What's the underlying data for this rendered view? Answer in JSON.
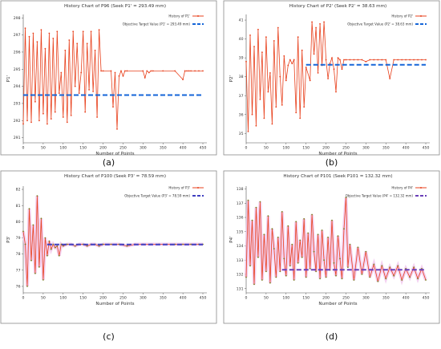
{
  "chart_data": [
    {
      "type": "line",
      "panel_label": "(a)",
      "title": "History Chart of P96 (Seek P1' = 293.49 mm)",
      "xlabel": "Number of Points",
      "ylabel": "P1'",
      "xlim": [
        0,
        460
      ],
      "ylim": [
        290.7,
        298.2
      ],
      "xticks": [
        0,
        50,
        100,
        150,
        200,
        250,
        300,
        350,
        400,
        450
      ],
      "yticks": [
        291,
        292,
        293,
        294,
        295,
        296,
        297,
        298
      ],
      "grid": false,
      "legend_position": "top-right",
      "series": [
        {
          "name": "History of P1'",
          "style": "line-markers",
          "color": "#e8401c",
          "x": [
            0,
            5,
            10,
            15,
            20,
            25,
            30,
            35,
            40,
            45,
            50,
            55,
            60,
            65,
            70,
            75,
            80,
            85,
            90,
            95,
            100,
            105,
            110,
            115,
            120,
            125,
            130,
            135,
            140,
            145,
            150,
            155,
            160,
            165,
            170,
            175,
            180,
            185,
            190,
            195,
            200,
            220,
            225,
            230,
            235,
            240,
            245,
            250,
            255,
            260,
            300,
            305,
            310,
            315,
            320,
            325,
            350,
            380,
            400,
            405,
            410,
            415,
            420,
            430,
            440,
            450
          ],
          "y": [
            291.8,
            297.4,
            292.0,
            296.9,
            291.9,
            297.1,
            293.1,
            296.6,
            292.0,
            297.3,
            292.4,
            296.2,
            291.8,
            297.1,
            292.1,
            296.8,
            292.5,
            297.2,
            293.6,
            294.8,
            292.2,
            296.1,
            291.9,
            296.7,
            292.3,
            297.2,
            294.0,
            296.5,
            293.6,
            294.8,
            297.2,
            292.5,
            296.5,
            293.8,
            297.2,
            293.7,
            296.1,
            292.2,
            297.3,
            294.9,
            294.9,
            294.9,
            292.8,
            294.8,
            291.5,
            294.6,
            294.9,
            294.6,
            294.9,
            294.9,
            294.9,
            294.5,
            294.9,
            294.8,
            294.9,
            294.9,
            294.9,
            294.9,
            294.4,
            294.9,
            294.9,
            294.9,
            294.9,
            294.9,
            294.9,
            294.9
          ]
        },
        {
          "name": "Objective Target Value (P1' = 293.49 mm)",
          "style": "dashed",
          "color": "#1565d8",
          "x": [
            0,
            450
          ],
          "y": [
            293.49,
            293.49
          ]
        }
      ]
    },
    {
      "type": "line",
      "panel_label": "(b)",
      "title": "History Chart of P2' (Seek P2' = 38.63 mm)",
      "xlabel": "Number of Points",
      "ylabel": "P2'",
      "xlim": [
        0,
        460
      ],
      "ylim": [
        34.5,
        41.3
      ],
      "xticks": [
        0,
        50,
        100,
        150,
        200,
        250,
        300,
        350,
        400,
        450
      ],
      "yticks": [
        35,
        36,
        37,
        38,
        39,
        40,
        41
      ],
      "grid": false,
      "legend_position": "top-right",
      "series": [
        {
          "name": "History of P2'",
          "style": "line-markers",
          "color": "#e8401c",
          "x": [
            0,
            5,
            10,
            15,
            20,
            25,
            30,
            35,
            40,
            45,
            50,
            55,
            60,
            65,
            70,
            75,
            80,
            85,
            90,
            95,
            100,
            105,
            110,
            115,
            120,
            125,
            130,
            135,
            140,
            145,
            150,
            160,
            165,
            170,
            175,
            180,
            185,
            190,
            195,
            200,
            205,
            210,
            215,
            220,
            225,
            230,
            235,
            240,
            245,
            250,
            260,
            270,
            280,
            290,
            300,
            310,
            320,
            330,
            340,
            350,
            360,
            370,
            380,
            390,
            400,
            410,
            420,
            430,
            440,
            450
          ],
          "y": [
            38.8,
            35.1,
            40.2,
            36.0,
            39.6,
            35.4,
            40.5,
            36.8,
            39.3,
            35.8,
            40.1,
            37.2,
            38.2,
            35.5,
            39.9,
            36.4,
            40.6,
            38.0,
            36.5,
            39.1,
            37.8,
            38.6,
            38.9,
            38.7,
            38.9,
            36.1,
            40.1,
            35.8,
            39.4,
            36.4,
            38.5,
            37.8,
            40.9,
            39.2,
            40.6,
            38.2,
            40.8,
            38.6,
            40.9,
            38.9,
            37.9,
            38.7,
            39.0,
            38.4,
            37.2,
            39.0,
            38.9,
            38.4,
            38.9,
            38.9,
            38.9,
            38.9,
            38.9,
            38.9,
            38.8,
            38.9,
            38.9,
            38.9,
            38.9,
            38.9,
            37.9,
            38.9,
            38.9,
            38.9,
            38.9,
            38.9,
            38.9,
            38.9,
            38.9,
            38.9
          ]
        },
        {
          "name": "Objective Target Value (P2' = 38.63 mm)",
          "style": "dashed",
          "color": "#1565d8",
          "x": [
            150,
            450
          ],
          "y": [
            38.63,
            38.63
          ]
        }
      ]
    },
    {
      "type": "line",
      "panel_label": "(c)",
      "title": "History Chart of P100 (Seek P3' = 78.59 mm)",
      "xlabel": "Number of Points",
      "ylabel": "P3'",
      "xlim": [
        0,
        460
      ],
      "ylim": [
        75.6,
        82.2
      ],
      "xticks": [
        0,
        50,
        100,
        150,
        200,
        250,
        300,
        350,
        400,
        450
      ],
      "yticks": [
        76,
        77,
        78,
        79,
        80,
        81,
        82
      ],
      "grid": false,
      "legend_position": "top-right",
      "series": [
        {
          "name": "History of P3'",
          "style": "line-markers",
          "color": "#e8401c",
          "x": [
            0,
            5,
            10,
            15,
            20,
            25,
            30,
            35,
            40,
            45,
            50,
            55,
            60,
            65,
            70,
            75,
            80,
            85,
            90,
            95,
            100,
            110,
            120,
            130,
            140,
            150,
            160,
            170,
            180,
            190,
            200,
            220,
            240,
            260,
            280,
            300,
            320,
            340,
            360,
            380,
            400,
            420,
            440,
            450
          ],
          "y": [
            79.4,
            78.6,
            76.0,
            80.8,
            77.6,
            79.8,
            76.8,
            81.6,
            77.2,
            80.2,
            76.4,
            79.0,
            77.9,
            78.8,
            78.3,
            78.6,
            78.4,
            78.5,
            77.9,
            78.6,
            78.5,
            78.6,
            78.6,
            78.5,
            78.6,
            78.6,
            78.5,
            78.6,
            78.6,
            78.5,
            78.6,
            78.6,
            78.6,
            78.5,
            78.6,
            78.6,
            78.6,
            78.6,
            78.6,
            78.6,
            78.6,
            78.6,
            78.6,
            78.6
          ]
        },
        {
          "name": "Objective Target Value (P3' = 78.59 mm)",
          "style": "dashed",
          "color": "#3f3fc0",
          "x": [
            60,
            450
          ],
          "y": [
            78.59,
            78.59
          ]
        }
      ]
    },
    {
      "type": "line",
      "panel_label": "(d)",
      "title": "History Chart of P101 (Seek P101 = 132.32 mm)",
      "xlabel": "Number of Points",
      "ylabel": "P4'",
      "xlim": [
        0,
        460
      ],
      "ylim": [
        130.7,
        138.2
      ],
      "xticks": [
        0,
        50,
        100,
        150,
        200,
        250,
        300,
        350,
        400,
        450
      ],
      "yticks": [
        131,
        132,
        133,
        134,
        135,
        136,
        137,
        138
      ],
      "grid": false,
      "legend_position": "top-right",
      "series": [
        {
          "name": "History of P4'",
          "style": "line-markers",
          "color": "#e8401c",
          "x": [
            0,
            5,
            10,
            15,
            20,
            25,
            30,
            35,
            40,
            45,
            50,
            55,
            60,
            65,
            70,
            75,
            80,
            85,
            90,
            95,
            100,
            105,
            110,
            115,
            120,
            125,
            130,
            135,
            140,
            145,
            150,
            155,
            160,
            165,
            170,
            175,
            180,
            185,
            190,
            195,
            200,
            205,
            210,
            215,
            220,
            225,
            230,
            235,
            240,
            245,
            250,
            255,
            260,
            270,
            280,
            290,
            300,
            310,
            320,
            330,
            340,
            350,
            360,
            370,
            380,
            390,
            400,
            410,
            420,
            430,
            440,
            450
          ],
          "y": [
            131.8,
            137.2,
            132.6,
            135.8,
            131.3,
            136.7,
            133.2,
            137.1,
            131.6,
            134.8,
            132.2,
            136.1,
            131.4,
            135.2,
            133.8,
            131.8,
            134.6,
            132.2,
            136.4,
            133.1,
            131.9,
            135.4,
            132.6,
            134.1,
            131.6,
            135.7,
            132.8,
            134.4,
            133.2,
            135.9,
            131.8,
            134.9,
            132.4,
            136.2,
            133.6,
            132.2,
            134.8,
            131.7,
            135.1,
            133.0,
            131.8,
            134.6,
            132.3,
            135.8,
            132.8,
            131.9,
            134.7,
            133.1,
            131.7,
            135.2,
            137.4,
            132.5,
            134.1,
            131.6,
            133.9,
            132.0,
            133.6,
            131.8,
            132.7,
            131.5,
            132.6,
            131.7,
            132.5,
            131.9,
            132.6,
            131.6,
            132.4,
            131.8,
            132.5,
            131.7,
            132.4,
            131.6
          ]
        },
        {
          "name": "Objective Target Value (P4' = 132.32 mm)",
          "style": "dashed",
          "color": "#6a3fb8",
          "x": [
            90,
            450
          ],
          "y": [
            132.32,
            132.32
          ]
        }
      ]
    }
  ]
}
